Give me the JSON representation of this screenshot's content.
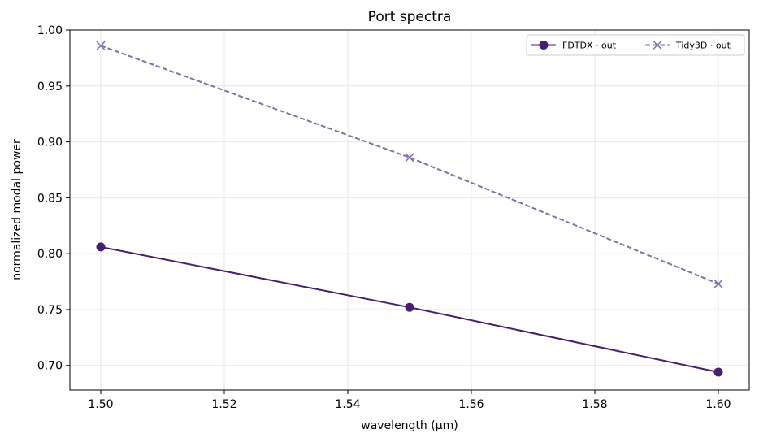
{
  "chart_data": {
    "type": "line",
    "title": "Port spectra",
    "xlabel": "wavelength (µm)",
    "ylabel": "normalized modal power",
    "xlim": [
      1.495,
      1.605
    ],
    "ylim": [
      0.678,
      1.0
    ],
    "xticks": [
      1.5,
      1.52,
      1.54,
      1.56,
      1.58,
      1.6
    ],
    "xtick_labels": [
      "1.50",
      "1.52",
      "1.54",
      "1.56",
      "1.58",
      "1.60"
    ],
    "yticks": [
      0.7,
      0.75,
      0.8,
      0.85,
      0.9,
      0.95,
      1.0
    ],
    "ytick_labels": [
      "0.70",
      "0.75",
      "0.80",
      "0.85",
      "0.90",
      "0.95",
      "1.00"
    ],
    "grid": true,
    "legend_position": "top-right",
    "series": [
      {
        "name": "FDTDX · out",
        "x": [
          1.5,
          1.55,
          1.6
        ],
        "y": [
          0.806,
          0.752,
          0.694
        ],
        "color": "#44206e",
        "line_style": "solid",
        "marker": "circle"
      },
      {
        "name": "Tidy3D · out",
        "x": [
          1.5,
          1.55,
          1.6
        ],
        "y": [
          0.986,
          0.886,
          0.773
        ],
        "color": "#8470a6",
        "line_style": "dashed",
        "marker": "x"
      }
    ]
  }
}
